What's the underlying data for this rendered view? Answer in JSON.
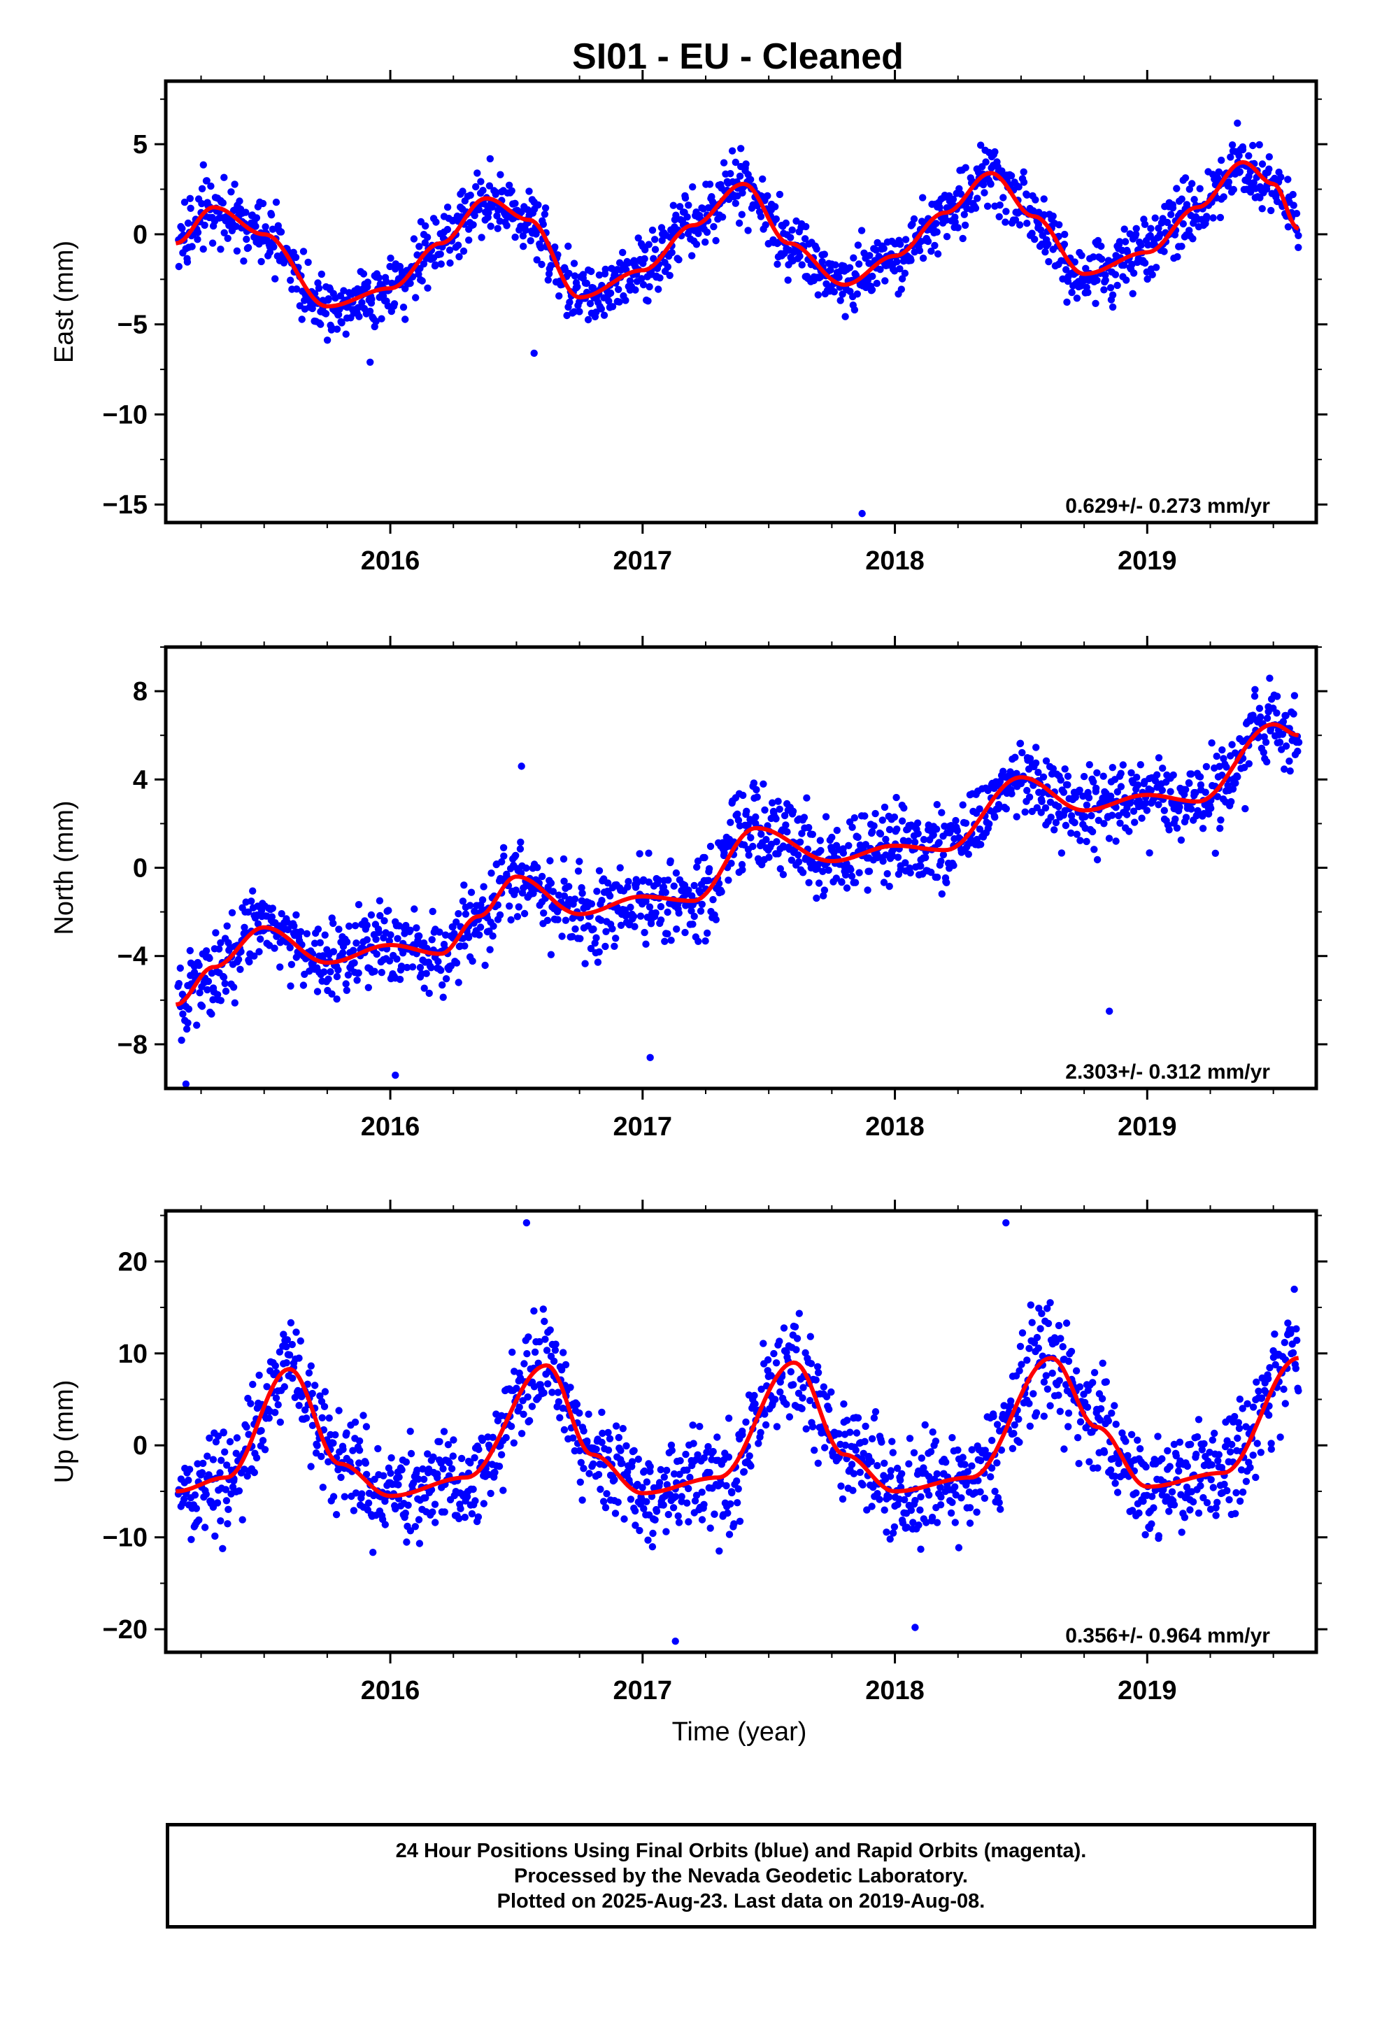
{
  "title": "SI01  - EU - Cleaned",
  "x_axis_label": "Time (year)",
  "footer": {
    "line1": "24 Hour Positions Using Final Orbits (blue) and Rapid Orbits (magenta).",
    "line2": "Processed by the Nevada Geodetic Laboratory.",
    "line3": "Plotted on 2025-Aug-23. Last data on 2019-Aug-08."
  },
  "colors": {
    "points": "#0000ff",
    "model": "#ff0000",
    "axes": "#000000"
  },
  "chart_data": [
    {
      "type": "scatter",
      "ylabel": "East (mm)",
      "rate_label": "0.629+/- 0.273 mm/yr",
      "xlim": [
        2015.11,
        2019.67
      ],
      "ylim": [
        -16,
        8.5
      ],
      "xticks": [
        2016,
        2017,
        2018,
        2019
      ],
      "yticks": [
        5,
        0,
        -5,
        -10,
        -15
      ],
      "ytick_labels": [
        "5",
        "0",
        "−5",
        "−10",
        "−15"
      ],
      "model": {
        "x": [
          2015.15,
          2015.3,
          2015.5,
          2015.75,
          2016.0,
          2016.2,
          2016.38,
          2016.55,
          2016.75,
          2017.0,
          2017.2,
          2017.4,
          2017.58,
          2017.8,
          2018.0,
          2018.2,
          2018.38,
          2018.55,
          2018.75,
          2019.0,
          2019.2,
          2019.38,
          2019.5,
          2019.6
        ],
        "y": [
          -0.5,
          1.5,
          0.0,
          -4.0,
          -3.0,
          -0.5,
          2.0,
          0.8,
          -3.5,
          -2.0,
          0.5,
          2.8,
          -0.5,
          -2.8,
          -1.2,
          1.2,
          3.4,
          1.0,
          -2.2,
          -1.0,
          1.5,
          4.0,
          2.8,
          0.3
        ]
      },
      "outliers": [
        {
          "x": 2017.87,
          "y": -15.5
        },
        {
          "x": 2015.92,
          "y": -7.1
        },
        {
          "x": 2016.57,
          "y": -6.6
        }
      ],
      "scatter_sigma": 1.3,
      "n_points": 1500
    },
    {
      "type": "scatter",
      "ylabel": "North (mm)",
      "rate_label": "2.303+/- 0.312 mm/yr",
      "xlim": [
        2015.11,
        2019.67
      ],
      "ylim": [
        -10,
        10
      ],
      "xticks": [
        2016,
        2017,
        2018,
        2019
      ],
      "yticks": [
        8,
        4,
        0,
        -4,
        -8
      ],
      "ytick_labels": [
        "8",
        "4",
        "0",
        "−4",
        "−8"
      ],
      "model": {
        "x": [
          2015.15,
          2015.3,
          2015.5,
          2015.75,
          2016.0,
          2016.2,
          2016.35,
          2016.5,
          2016.75,
          2017.0,
          2017.2,
          2017.45,
          2017.75,
          2018.0,
          2018.2,
          2018.5,
          2018.75,
          2019.0,
          2019.2,
          2019.5,
          2019.6
        ],
        "y": [
          -6.2,
          -4.5,
          -2.7,
          -4.3,
          -3.5,
          -3.9,
          -2.2,
          -0.4,
          -2.1,
          -1.3,
          -1.5,
          1.8,
          0.3,
          1.0,
          0.8,
          4.1,
          2.6,
          3.3,
          3.0,
          6.5,
          6.0
        ]
      },
      "outliers": [
        {
          "x": 2015.19,
          "y": -9.8
        },
        {
          "x": 2016.02,
          "y": -9.4
        },
        {
          "x": 2017.03,
          "y": -8.6
        },
        {
          "x": 2018.85,
          "y": -6.5
        },
        {
          "x": 2016.52,
          "y": 4.6
        }
      ],
      "scatter_sigma": 1.3,
      "n_points": 1500
    },
    {
      "type": "scatter",
      "ylabel": "Up (mm)",
      "rate_label": "0.356+/- 0.964 mm/yr",
      "xlim": [
        2015.11,
        2019.67
      ],
      "ylim": [
        -22.5,
        25.5
      ],
      "xticks": [
        2016,
        2017,
        2018,
        2019
      ],
      "yticks": [
        20,
        10,
        0,
        -10,
        -20
      ],
      "ytick_labels": [
        "20",
        "10",
        "0",
        "−10",
        "−20"
      ],
      "model": {
        "x": [
          2015.15,
          2015.35,
          2015.6,
          2015.8,
          2016.0,
          2016.3,
          2016.62,
          2016.8,
          2017.0,
          2017.3,
          2017.6,
          2017.8,
          2018.0,
          2018.3,
          2018.62,
          2018.8,
          2019.0,
          2019.3,
          2019.6
        ],
        "y": [
          -5.0,
          -3.5,
          8.3,
          -2.0,
          -5.5,
          -3.5,
          8.7,
          -1.0,
          -5.2,
          -3.5,
          9.0,
          -1.0,
          -5.0,
          -3.5,
          9.5,
          2.0,
          -4.5,
          -3.0,
          9.5
        ]
      },
      "outliers": [
        {
          "x": 2016.54,
          "y": 24.2
        },
        {
          "x": 2018.44,
          "y": 24.2
        },
        {
          "x": 2017.13,
          "y": -21.3
        },
        {
          "x": 2018.08,
          "y": -19.8
        }
      ],
      "scatter_sigma": 4.0,
      "n_points": 1500
    }
  ]
}
